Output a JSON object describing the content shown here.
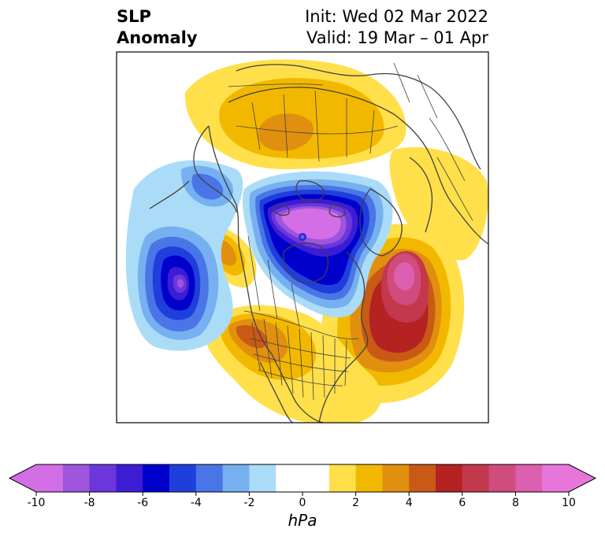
{
  "title": {
    "variable_line1": "SLP",
    "variable_line2": "Anomaly",
    "init": "Init: Wed 02 Mar 2022",
    "valid": "Valid: 19 Mar – 01 Apr"
  },
  "map": {
    "projection": "polar stereographic (North America / Arctic)",
    "features": [
      "coastlines",
      "country borders",
      "US state borders",
      "Canadian province borders"
    ]
  },
  "colorbar": {
    "unit": "hPa",
    "extend": "both",
    "tick_labels": [
      "-10",
      "-8",
      "-6",
      "-4",
      "-2",
      "0",
      "2",
      "4",
      "6",
      "8",
      "10"
    ],
    "levels": [
      -10,
      -9,
      -8,
      -7,
      -6,
      -5,
      -4,
      -3,
      -2,
      -1,
      1,
      2,
      3,
      4,
      5,
      6,
      7,
      8,
      9,
      10
    ],
    "colors": [
      "#d46ee6",
      "#9d55dd",
      "#6b37dc",
      "#3c1dd4",
      "#0000cc",
      "#1f3fdc",
      "#4a75e6",
      "#76b0f0",
      "#aadcf8",
      "#ffffff",
      "#ffe04a",
      "#f2b800",
      "#e0900e",
      "#c95a16",
      "#b42222",
      "#c3384d",
      "#cf4c7c",
      "#dc60b0",
      "#e676d9"
    ]
  }
}
